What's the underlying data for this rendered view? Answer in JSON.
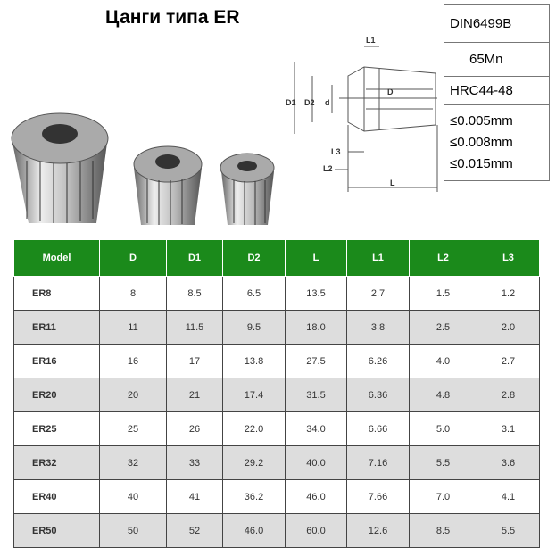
{
  "header": {
    "title": "Цанги типа ER"
  },
  "specs": [
    "DIN6499B",
    "65Mn",
    "HRC44-48",
    [
      "≤0.005mm",
      "≤0.008mm",
      "≤0.015mm"
    ]
  ],
  "drawing": {
    "labels": [
      "L1",
      "D1",
      "D2",
      "d",
      "D",
      "L3",
      "L2",
      "L"
    ]
  },
  "table": {
    "columns": [
      "Model",
      "D",
      "D1",
      "D2",
      "L",
      "L1",
      "L2",
      "L3"
    ],
    "rows": [
      [
        "ER8",
        "8",
        "8.5",
        "6.5",
        "13.5",
        "2.7",
        "1.5",
        "1.2"
      ],
      [
        "ER11",
        "11",
        "11.5",
        "9.5",
        "18.0",
        "3.8",
        "2.5",
        "2.0"
      ],
      [
        "ER16",
        "16",
        "17",
        "13.8",
        "27.5",
        "6.26",
        "4.0",
        "2.7"
      ],
      [
        "ER20",
        "20",
        "21",
        "17.4",
        "31.5",
        "6.36",
        "4.8",
        "2.8"
      ],
      [
        "ER25",
        "25",
        "26",
        "22.0",
        "34.0",
        "6.66",
        "5.0",
        "3.1"
      ],
      [
        "ER32",
        "32",
        "33",
        "29.2",
        "40.0",
        "7.16",
        "5.5",
        "3.6"
      ],
      [
        "ER40",
        "40",
        "41",
        "36.2",
        "46.0",
        "7.66",
        "7.0",
        "4.1"
      ],
      [
        "ER50",
        "50",
        "52",
        "46.0",
        "60.0",
        "12.6",
        "8.5",
        "5.5"
      ]
    ]
  }
}
